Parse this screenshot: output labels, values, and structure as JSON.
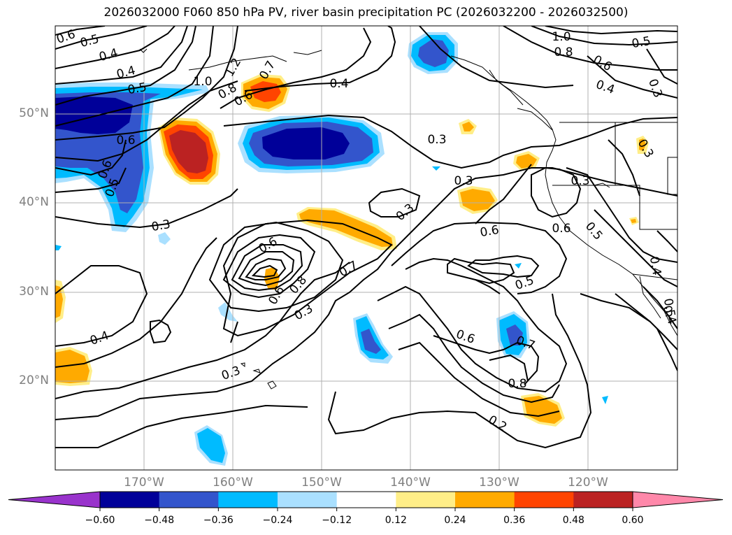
{
  "title": "2026032000 F060 850 hPa PV, river basin precipitation PC (2026032200 - 2026032500)",
  "lat_labels": [
    "50°N",
    "40°N",
    "30°N",
    "20°N"
  ],
  "lon_labels": [
    "170°W",
    "160°W",
    "150°W",
    "140°W",
    "130°W",
    "120°W"
  ],
  "colorbar": {
    "colors": [
      "#9933cc",
      "#000099",
      "#3355cc",
      "#00bbff",
      "#aae0ff",
      "#ffffff",
      "#ffee88",
      "#ffaa00",
      "#ff4400",
      "#bb2222",
      "#ff88aa"
    ],
    "ticks": [
      "−0.60",
      "−0.48",
      "−0.36",
      "−0.24",
      "−0.12",
      "0.12",
      "0.24",
      "0.36",
      "0.48",
      "0.60"
    ]
  },
  "contour_labels": [
    {
      "text": "0.6"
    },
    {
      "text": "0.5"
    },
    {
      "text": "0.4"
    },
    {
      "text": "0.4"
    },
    {
      "text": "0.5"
    },
    {
      "text": "1.0"
    },
    {
      "text": "1.2"
    },
    {
      "text": "0.8"
    },
    {
      "text": "0.6"
    },
    {
      "text": "0.7"
    },
    {
      "text": "0.4"
    },
    {
      "text": "1.0"
    },
    {
      "text": "0.8"
    },
    {
      "text": "0.6"
    },
    {
      "text": "0.5"
    },
    {
      "text": "0.4"
    },
    {
      "text": "0.3"
    },
    {
      "text": "0.6"
    },
    {
      "text": "0.3"
    },
    {
      "text": "0.3"
    },
    {
      "text": "0.3"
    },
    {
      "text": "0.6"
    },
    {
      "text": "0.6"
    },
    {
      "text": "0.5"
    },
    {
      "text": "0.6"
    },
    {
      "text": "0.5"
    },
    {
      "text": "0.6"
    },
    {
      "text": "0.3"
    },
    {
      "text": "0.6"
    },
    {
      "text": "0.8"
    },
    {
      "text": "0.7"
    },
    {
      "text": "0.5"
    },
    {
      "text": "0.3"
    },
    {
      "text": "0.4"
    },
    {
      "text": "0.6"
    },
    {
      "text": "0.7"
    },
    {
      "text": "0.8"
    },
    {
      "text": "0.4"
    },
    {
      "text": "0.3"
    },
    {
      "text": "0.2"
    },
    {
      "text": "0.3"
    },
    {
      "text": "0.5"
    },
    {
      "text": "0.3"
    },
    {
      "text": "0.4"
    }
  ]
}
